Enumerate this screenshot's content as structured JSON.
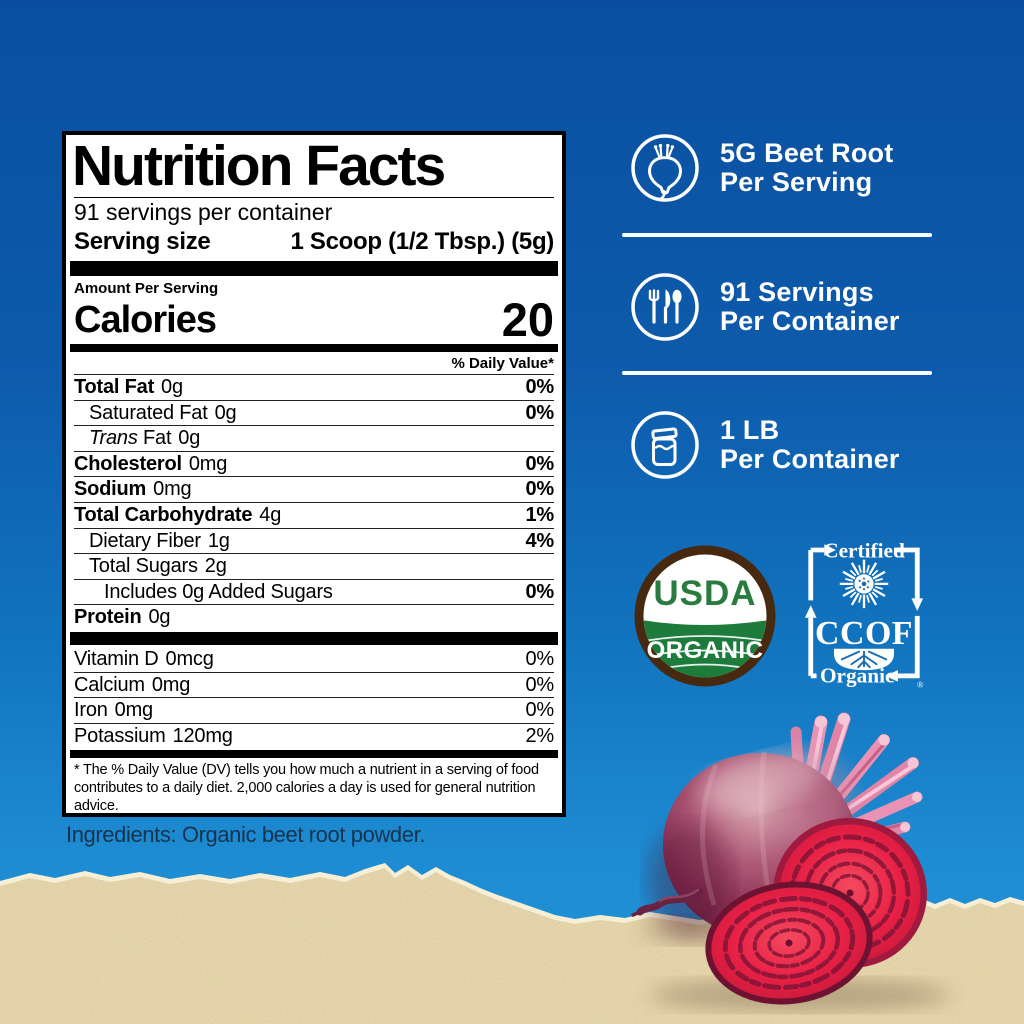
{
  "colors": {
    "background_blue_top": "#0a4f9f",
    "background_blue_bottom": "#2295da",
    "paper_tan": "#ead9ae",
    "label_black": "#000000",
    "usda_green": "#1d7b3b",
    "usda_brown": "#47290f",
    "beet_red": "#e82045",
    "white": "#ffffff"
  },
  "nutrition_label": {
    "title": "Nutrition Facts",
    "servings_per_container": "91 servings per container",
    "serving_size_label": "Serving size",
    "serving_size_value": "1 Scoop (1/2 Tbsp.) (5g)",
    "amount_per_serving": "Amount Per Serving",
    "calories_label": "Calories",
    "calories_value": "20",
    "daily_value_header": "% Daily Value*",
    "rows": [
      {
        "name": "Total Fat",
        "amount": "0g",
        "dv": "0%",
        "bold": true,
        "indent": 0,
        "dv_bold": true
      },
      {
        "name": "Saturated Fat",
        "amount": "0g",
        "dv": "0%",
        "bold": false,
        "indent": 1,
        "dv_bold": true
      },
      {
        "italic": "Trans",
        "name": "Fat",
        "amount": "0g",
        "dv": "",
        "bold": false,
        "indent": 1,
        "dv_bold": false
      },
      {
        "name": "Cholesterol",
        "amount": "0mg",
        "dv": "0%",
        "bold": true,
        "indent": 0,
        "dv_bold": true
      },
      {
        "name": "Sodium",
        "amount": "0mg",
        "dv": "0%",
        "bold": true,
        "indent": 0,
        "dv_bold": true
      },
      {
        "name": "Total Carbohydrate",
        "amount": "4g",
        "dv": "1%",
        "bold": true,
        "indent": 0,
        "dv_bold": true
      },
      {
        "name": "Dietary Fiber",
        "amount": "1g",
        "dv": "4%",
        "bold": false,
        "indent": 1,
        "dv_bold": true
      },
      {
        "name": "Total Sugars",
        "amount": "2g",
        "dv": "",
        "bold": false,
        "indent": 1,
        "dv_bold": false
      },
      {
        "name": "Includes 0g Added Sugars",
        "amount": "",
        "dv": "0%",
        "bold": false,
        "indent": 2,
        "dv_bold": true
      },
      {
        "name": "Protein",
        "amount": "0g",
        "dv": "",
        "bold": true,
        "indent": 0,
        "dv_bold": false
      }
    ],
    "vitamin_rows": [
      {
        "name": "Vitamin D",
        "amount": "0mcg",
        "dv": "0%"
      },
      {
        "name": "Calcium",
        "amount": "0mg",
        "dv": "0%"
      },
      {
        "name": "Iron",
        "amount": "0mg",
        "dv": "0%"
      },
      {
        "name": "Potassium",
        "amount": "120mg",
        "dv": "2%"
      }
    ],
    "footnote": "* The % Daily Value (DV) tells you how much a nutrient in a serving of food contributes to a daily diet. 2,000 calories a day is used for general nutrition advice."
  },
  "ingredients": "Ingredients: Organic beet root powder.",
  "right_column": {
    "items": [
      {
        "icon": "beet-icon",
        "line1": "5G Beet Root",
        "line2": "Per Serving"
      },
      {
        "icon": "cutlery-icon",
        "line1": "91 Servings",
        "line2": "Per Container"
      },
      {
        "icon": "jar-icon",
        "line1": "1 LB",
        "line2": "Per Container"
      }
    ]
  },
  "badges": {
    "usda": {
      "line1": "USDA",
      "line2": "ORGANIC"
    },
    "ccof": {
      "top": "Certified",
      "center": "CCOF",
      "bottom": "Organic",
      "reg": "®"
    }
  }
}
